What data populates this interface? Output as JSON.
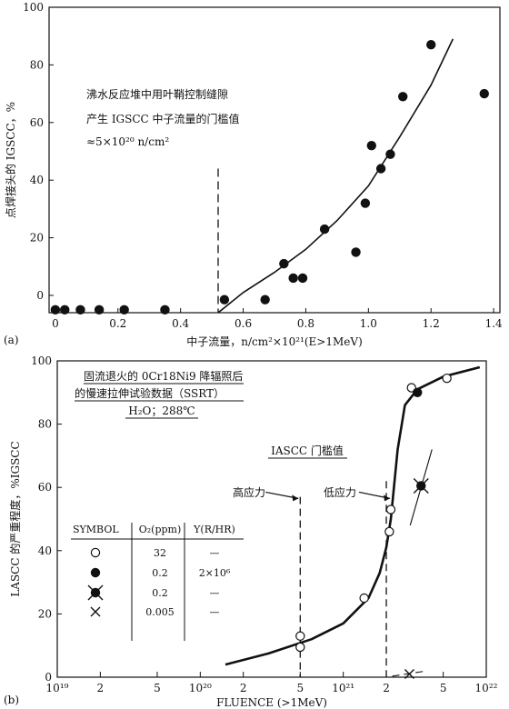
{
  "chart_data": [
    {
      "panel_label": "(a)",
      "type": "scatter",
      "xlabel": "中子流量，n/cm²×10²¹(E>1MeV)",
      "ylabel": "点焊接头的 IGSCC，%",
      "xlim": [
        -0.02,
        1.42
      ],
      "ylim": [
        -6,
        100
      ],
      "xticks": [
        "0",
        "0.2",
        "0.4",
        "0.6",
        "0.8",
        "1.0",
        "1.2",
        "1.4"
      ],
      "xtick_values": [
        0,
        0.2,
        0.4,
        0.6,
        0.8,
        1.0,
        1.2,
        1.4
      ],
      "yticks": [
        "0",
        "20",
        "40",
        "60",
        "80",
        "100"
      ],
      "ytick_values": [
        0,
        20,
        40,
        60,
        80,
        100
      ],
      "annotation_lines": [
        "沸水反应堆中用叶鞘控制缝隙",
        "产生 IGSCC 中子流量的门槛值",
        "≈5×10²⁰ n/cm²"
      ],
      "threshold_x": 0.52,
      "points": [
        {
          "x": 0.0,
          "y": -5
        },
        {
          "x": 0.03,
          "y": -5
        },
        {
          "x": 0.08,
          "y": -5
        },
        {
          "x": 0.14,
          "y": -5
        },
        {
          "x": 0.22,
          "y": -5
        },
        {
          "x": 0.35,
          "y": -5
        },
        {
          "x": 0.54,
          "y": -1.5
        },
        {
          "x": 0.67,
          "y": -1.5
        },
        {
          "x": 0.73,
          "y": 11
        },
        {
          "x": 0.76,
          "y": 6
        },
        {
          "x": 0.79,
          "y": 6
        },
        {
          "x": 0.86,
          "y": 23
        },
        {
          "x": 0.96,
          "y": 15
        },
        {
          "x": 0.99,
          "y": 32
        },
        {
          "x": 1.01,
          "y": 52
        },
        {
          "x": 1.04,
          "y": 44
        },
        {
          "x": 1.07,
          "y": 49
        },
        {
          "x": 1.11,
          "y": 69
        },
        {
          "x": 1.2,
          "y": 87
        },
        {
          "x": 1.37,
          "y": 70
        }
      ],
      "fit_curve": [
        {
          "x": 0.52,
          "y": -6
        },
        {
          "x": 0.6,
          "y": 1
        },
        {
          "x": 0.7,
          "y": 8
        },
        {
          "x": 0.8,
          "y": 16
        },
        {
          "x": 0.9,
          "y": 26
        },
        {
          "x": 1.0,
          "y": 38
        },
        {
          "x": 1.1,
          "y": 55
        },
        {
          "x": 1.2,
          "y": 73
        },
        {
          "x": 1.27,
          "y": 89
        }
      ]
    },
    {
      "panel_label": "(b)",
      "type": "line",
      "xscale": "log",
      "xlabel": "FLUENCE (>1MeV)",
      "ylabel": "LASCC 的严重程度，%IGSCC",
      "xlim": [
        1e+19,
        1e+22
      ],
      "ylim": [
        0,
        100
      ],
      "xticks": [
        {
          "v": 1e+19,
          "t": "10¹⁹"
        },
        {
          "v": 2e+19,
          "t": "2"
        },
        {
          "v": 5e+19,
          "t": "5"
        },
        {
          "v": 1e+20,
          "t": "10²⁰"
        },
        {
          "v": 2e+20,
          "t": "2"
        },
        {
          "v": 5e+20,
          "t": "5"
        },
        {
          "v": 1e+21,
          "t": "10²¹"
        },
        {
          "v": 2e+21,
          "t": "2"
        },
        {
          "v": 5e+21,
          "t": "5"
        },
        {
          "v": 1e+22,
          "t": "10²²"
        }
      ],
      "yticks": [
        "0",
        "20",
        "40",
        "60",
        "80",
        "100"
      ],
      "ytick_values": [
        0,
        20,
        40,
        60,
        80,
        100
      ],
      "title_lines": [
        "固流退火的 0Cr18Ni9 降辐照后",
        "的慢速拉伸试验数据（SSRT）"
      ],
      "condition": "H₂O；288℃",
      "threshold_label": "IASCC 门槛值",
      "high_stress_label": "高应力",
      "low_stress_label": "低应力",
      "high_stress_x": 5e+20,
      "low_stress_x": 2e+21,
      "legend": {
        "headers": [
          "SYMBOL",
          "O₂(ppm)",
          "Y(R/HR)"
        ],
        "rows": [
          {
            "symbol": "open-circle",
            "o2": "32",
            "y": "—"
          },
          {
            "symbol": "filled-circle",
            "o2": "0.2",
            "y": "2×10⁶"
          },
          {
            "symbol": "filled-circle-x",
            "o2": "0.2",
            "y": "—"
          },
          {
            "symbol": "x",
            "o2": "0.005",
            "y": "—"
          }
        ]
      },
      "series": [
        {
          "symbol": "open-circle",
          "points": [
            {
              "x": 5e+20,
              "y": 13
            },
            {
              "x": 5e+20,
              "y": 9.5
            },
            {
              "x": 1.4e+21,
              "y": 25
            },
            {
              "x": 2.1e+21,
              "y": 46
            },
            {
              "x": 2.15e+21,
              "y": 53
            },
            {
              "x": 3e+21,
              "y": 91.5
            },
            {
              "x": 5.3e+21,
              "y": 94.5
            }
          ]
        },
        {
          "symbol": "filled-circle",
          "points": [
            {
              "x": 3.3e+21,
              "y": 90
            }
          ]
        },
        {
          "symbol": "filled-circle-x",
          "points": [
            {
              "x": 3.5e+21,
              "y": 60.5
            }
          ]
        },
        {
          "symbol": "x",
          "points": [
            {
              "x": 2.9e+21,
              "y": 1
            }
          ]
        }
      ],
      "trend_curve": [
        {
          "x": 1.5e+20,
          "y": 4
        },
        {
          "x": 3e+20,
          "y": 7.5
        },
        {
          "x": 6e+20,
          "y": 12
        },
        {
          "x": 1e+21,
          "y": 17
        },
        {
          "x": 1.5e+21,
          "y": 25
        },
        {
          "x": 1.8e+21,
          "y": 33
        },
        {
          "x": 2e+21,
          "y": 41
        },
        {
          "x": 2.15e+21,
          "y": 50
        },
        {
          "x": 2.4e+21,
          "y": 72
        },
        {
          "x": 2.7e+21,
          "y": 86
        },
        {
          "x": 3.3e+21,
          "y": 91
        },
        {
          "x": 5e+21,
          "y": 95
        },
        {
          "x": 9e+21,
          "y": 98
        }
      ]
    }
  ]
}
